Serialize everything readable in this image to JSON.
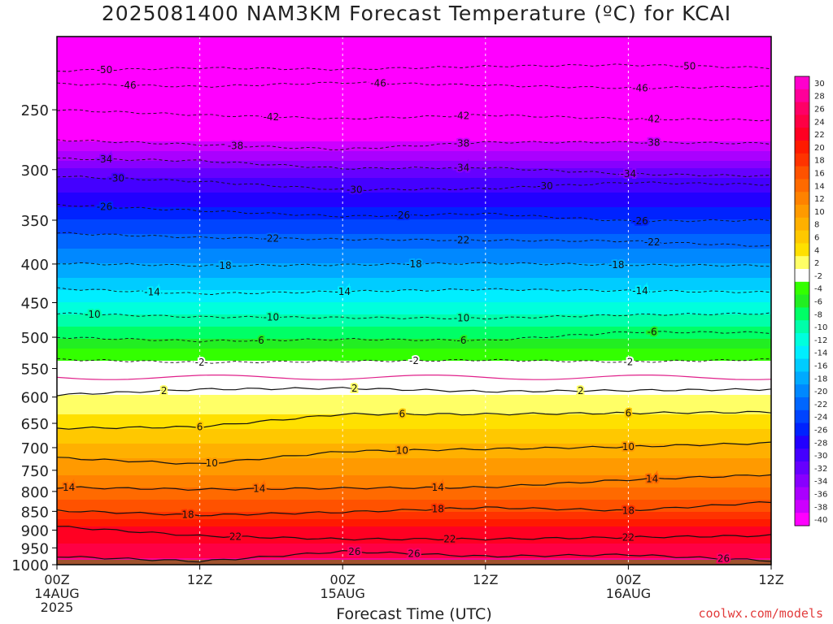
{
  "page": {
    "title": "2025081400 NAM3KM Forecast Temperature (ºC) for KCAI",
    "watermark": "coolwx.com/models"
  },
  "chart_data": {
    "type": "heatmap",
    "title": "2025081400 NAM3KM Forecast Temperature (ºC) for KCAI",
    "xlabel": "Forecast Time (UTC)",
    "ylabel": "",
    "x_ticks": [
      {
        "hour": 0,
        "label": "00Z",
        "sub1": "14AUG",
        "sub2": "2025"
      },
      {
        "hour": 12,
        "label": "12Z",
        "sub1": "",
        "sub2": ""
      },
      {
        "hour": 24,
        "label": "00Z",
        "sub1": "15AUG",
        "sub2": ""
      },
      {
        "hour": 36,
        "label": "12Z",
        "sub1": "",
        "sub2": ""
      },
      {
        "hour": 48,
        "label": "00Z",
        "sub1": "16AUG",
        "sub2": ""
      },
      {
        "hour": 60,
        "label": "12Z",
        "sub1": "",
        "sub2": ""
      }
    ],
    "xlim_hours": [
      0,
      60
    ],
    "y_ticks": [
      250,
      300,
      350,
      400,
      450,
      500,
      550,
      600,
      650,
      700,
      750,
      800,
      850,
      900,
      950,
      1000
    ],
    "ylim_hPa": [
      200,
      1000
    ],
    "y_scale": "log-pressure",
    "colorbar": {
      "levels": [
        30,
        28,
        26,
        24,
        22,
        20,
        18,
        16,
        14,
        12,
        10,
        8,
        6,
        4,
        2,
        -2,
        -4,
        -6,
        -8,
        -10,
        -12,
        -14,
        -16,
        -18,
        -20,
        -22,
        -24,
        -26,
        -28,
        -30,
        -32,
        -34,
        -36,
        -38,
        -40
      ],
      "colors": [
        "#ff00cc",
        "#ff0099",
        "#ff0066",
        "#ff0044",
        "#ff0022",
        "#ff1a00",
        "#ff3300",
        "#ff5200",
        "#ff6a00",
        "#ff8200",
        "#ff9a00",
        "#ffb000",
        "#ffc800",
        "#ffe000",
        "#ffff66",
        "#ffffff",
        "#33ff00",
        "#22ee22",
        "#00ff66",
        "#00ffaa",
        "#00ffdd",
        "#00eeff",
        "#00ccff",
        "#00aaff",
        "#0088ff",
        "#0066ff",
        "#0044ff",
        "#0022ff",
        "#2200ff",
        "#4400ff",
        "#6600ff",
        "#8800ff",
        "#aa00ff",
        "#cc00ff",
        "#ff00ff"
      ]
    },
    "contours": [
      {
        "value": -50,
        "label": "-50",
        "p": [
          222,
          220,
          221,
          219,
          218,
          220
        ],
        "labels_at": [
          4,
          53
        ]
      },
      {
        "value": -46,
        "label": "-46",
        "p": [
          231,
          233,
          230,
          232,
          234,
          233
        ],
        "labels_at": [
          6,
          27,
          49
        ]
      },
      {
        "value": -42,
        "label": "-42",
        "p": [
          250,
          254,
          257,
          254,
          257,
          258
        ],
        "labels_at": [
          18,
          34,
          50
        ]
      },
      {
        "value": -38,
        "label": "-38",
        "p": [
          274,
          278,
          282,
          276,
          276,
          277
        ],
        "labels_at": [
          15,
          34,
          50
        ]
      },
      {
        "value": -34,
        "label": "-34",
        "p": [
          290,
          292,
          299,
          298,
          304,
          306
        ],
        "labels_at": [
          4,
          34,
          48
        ]
      },
      {
        "value": -30,
        "label": "-30",
        "p": [
          306,
          311,
          319,
          318,
          312,
          314
        ],
        "labels_at": [
          5,
          25,
          41
        ]
      },
      {
        "value": -26,
        "label": "-26",
        "p": [
          334,
          340,
          346,
          343,
          351,
          350
        ],
        "labels_at": [
          4,
          29,
          49
        ]
      },
      {
        "value": -22,
        "label": "-22",
        "p": [
          364,
          369,
          371,
          372,
          373,
          379
        ],
        "labels_at": [
          18,
          34,
          50
        ]
      },
      {
        "value": -18,
        "label": "-18",
        "p": [
          399,
          402,
          401,
          399,
          401,
          402
        ],
        "labels_at": [
          14,
          30,
          47
        ]
      },
      {
        "value": -14,
        "label": "-14",
        "p": [
          431,
          438,
          435,
          432,
          434,
          436
        ],
        "labels_at": [
          8,
          24,
          49
        ]
      },
      {
        "value": -10,
        "label": "-10",
        "p": [
          465,
          470,
          471,
          472,
          467,
          465
        ],
        "labels_at": [
          3,
          18,
          34
        ]
      },
      {
        "value": -6,
        "label": "-6",
        "p": [
          500,
          506,
          503,
          505,
          492,
          493
        ],
        "labels_at": [
          17,
          34,
          50
        ]
      },
      {
        "value": -2,
        "label": "-2",
        "p": [
          535,
          540,
          538,
          536,
          539,
          535
        ],
        "labels_at": [
          12,
          30,
          48
        ]
      },
      {
        "value": 2,
        "label": "2",
        "p": [
          596,
          586,
          584,
          590,
          588,
          586
        ],
        "labels_at": [
          9,
          25,
          44
        ]
      },
      {
        "value": 6,
        "label": "6",
        "p": [
          660,
          657,
          632,
          632,
          630,
          628
        ],
        "labels_at": [
          12,
          29,
          48
        ]
      },
      {
        "value": 10,
        "label": "10",
        "p": [
          722,
          736,
          708,
          703,
          698,
          690
        ],
        "labels_at": [
          13,
          29,
          48
        ]
      },
      {
        "value": 14,
        "label": "14",
        "p": [
          790,
          795,
          792,
          790,
          772,
          760
        ],
        "labels_at": [
          1,
          17,
          32,
          50
        ]
      },
      {
        "value": 18,
        "label": "18",
        "p": [
          848,
          860,
          852,
          840,
          848,
          826
        ],
        "labels_at": [
          11,
          32,
          48
        ]
      },
      {
        "value": 22,
        "label": "22",
        "p": [
          890,
          916,
          925,
          925,
          920,
          915
        ],
        "labels_at": [
          15,
          33,
          48
        ]
      },
      {
        "value": 26,
        "label": "26",
        "p": [
          975,
          990,
          960,
          975,
          970,
          988
        ],
        "labels_at": [
          25,
          30,
          56
        ]
      }
    ]
  }
}
